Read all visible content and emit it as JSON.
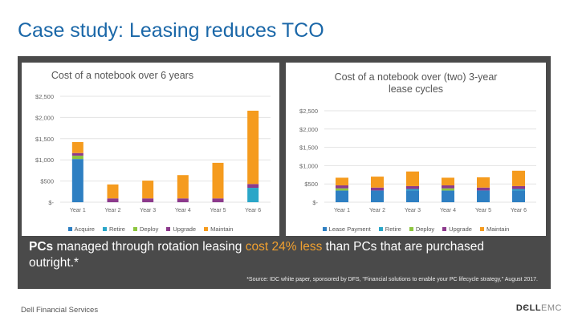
{
  "slide": {
    "title": "Case study: Leasing reduces TCO",
    "body_part1": "PCs",
    "body_part2": " managed through rotation leasing ",
    "body_highlight": "cost 24% less",
    "body_part3": " than PCs that are purchased outright.*",
    "source": "*Source: IDC white paper, sponsored by DFS, \"Financial solutions to enable your PC lifecycle strategy,\" August 2017.",
    "footer_left": "Dell Financial Services",
    "logo_main": "DЄLL",
    "logo_suffix": "EMC"
  },
  "colors": {
    "acquire": "#2e7fc2",
    "lease": "#2e7fc2",
    "retire": "#7b3fa0",
    "deploy": "#8dc63f",
    "upgrade": "#8c3a8c",
    "maintain": "#f59b1e",
    "retire_right": "#2aa6c8"
  },
  "chart_data": [
    {
      "type": "bar",
      "stacked": true,
      "title": "Cost of a notebook over 6 years",
      "categories": [
        "Year 1",
        "Year 2",
        "Year 3",
        "Year 4",
        "Year 5",
        "Year 6"
      ],
      "ylim": [
        0,
        2500
      ],
      "yticks": [
        0,
        500,
        1000,
        1500,
        2000,
        2500
      ],
      "ytick_labels": [
        "$-",
        "$500",
        "$1,000",
        "$1,500",
        "$2,000",
        "$2,500"
      ],
      "series": [
        {
          "name": "Acquire",
          "color": "#2e7fc2",
          "values": [
            1020,
            0,
            0,
            0,
            0,
            0
          ]
        },
        {
          "name": "Retire",
          "color": "#2aa6c8",
          "values": [
            0,
            0,
            0,
            0,
            0,
            340
          ]
        },
        {
          "name": "Deploy",
          "color": "#8dc63f",
          "values": [
            80,
            0,
            0,
            0,
            0,
            0
          ]
        },
        {
          "name": "Upgrade",
          "color": "#8c3a8c",
          "values": [
            60,
            90,
            90,
            90,
            90,
            90
          ]
        },
        {
          "name": "Maintain",
          "color": "#f59b1e",
          "values": [
            260,
            330,
            420,
            550,
            840,
            1730
          ]
        }
      ],
      "legend_position": "bottom",
      "grid": true
    },
    {
      "type": "bar",
      "stacked": true,
      "title": "Cost of a notebook over (two) 3-year lease cycles",
      "categories": [
        "Year 1",
        "Year 2",
        "Year 3",
        "Year 4",
        "Year 5",
        "Year 6"
      ],
      "ylim": [
        0,
        2500
      ],
      "yticks": [
        0,
        500,
        1000,
        1500,
        2000,
        2500
      ],
      "ytick_labels": [
        "$-",
        "$500",
        "$1,000",
        "$1,500",
        "$2,000",
        "$2,500"
      ],
      "series": [
        {
          "name": "Lease Payment",
          "color": "#2e7fc2",
          "values": [
            320,
            320,
            320,
            320,
            320,
            320
          ]
        },
        {
          "name": "Retire",
          "color": "#2aa6c8",
          "values": [
            0,
            0,
            40,
            0,
            0,
            40
          ]
        },
        {
          "name": "Deploy",
          "color": "#8dc63f",
          "values": [
            60,
            0,
            0,
            60,
            0,
            0
          ]
        },
        {
          "name": "Upgrade",
          "color": "#8c3a8c",
          "values": [
            80,
            80,
            80,
            80,
            80,
            80
          ]
        },
        {
          "name": "Maintain",
          "color": "#f59b1e",
          "values": [
            210,
            300,
            400,
            210,
            280,
            420
          ]
        }
      ],
      "legend_position": "bottom",
      "grid": true
    }
  ]
}
